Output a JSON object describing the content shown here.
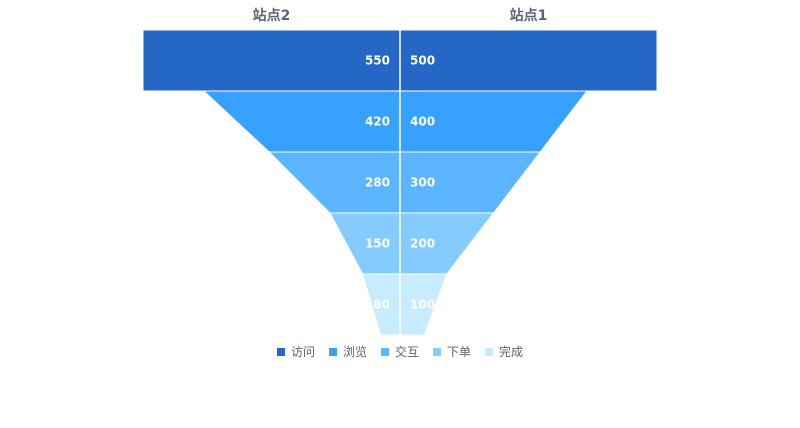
{
  "chart_data": {
    "type": "funnel",
    "stages": [
      "访问",
      "浏览",
      "交互",
      "下单",
      "完成"
    ],
    "colors": [
      "#2467c4",
      "#36a1ff",
      "#5bb5ff",
      "#84cbff",
      "#c7ebff"
    ],
    "series": [
      {
        "name": "站点2",
        "values": [
          550,
          420,
          280,
          150,
          80
        ],
        "side": "left"
      },
      {
        "name": "站点1",
        "values": [
          500,
          400,
          300,
          200,
          100
        ],
        "side": "right"
      }
    ],
    "legend_position": "bottom-center"
  }
}
